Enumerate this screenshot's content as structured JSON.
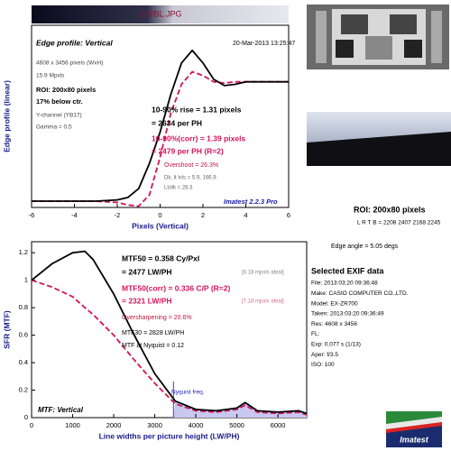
{
  "chart_data": [
    {
      "type": "line",
      "title": "GJFBL.JPG",
      "xlabel": "Pixels (Vertical)",
      "ylabel": "Edge profile (linear)",
      "x": [
        -6,
        -5,
        -4,
        -3,
        -2,
        -1.5,
        -1,
        -0.5,
        0,
        0.5,
        1,
        1.5,
        2,
        2.5,
        3,
        3.5,
        4,
        5,
        6
      ],
      "series": [
        {
          "name": "Edge",
          "color": "#000000",
          "dash": false,
          "values": [
            0.05,
            0.05,
            0.05,
            0.05,
            0.06,
            0.08,
            0.15,
            0.35,
            0.6,
            0.9,
            1.15,
            1.25,
            1.15,
            1.02,
            0.97,
            0.98,
            1.0,
            1.0,
            1.0
          ]
        },
        {
          "name": "Corrected",
          "color": "#d4145a",
          "dash": true,
          "values": [
            0.05,
            0.05,
            0.05,
            0.05,
            0.04,
            0.02,
            0.01,
            0.1,
            0.4,
            0.75,
            0.98,
            1.08,
            1.05,
            1.0,
            0.99,
            1.0,
            1.0,
            1.0,
            1.0
          ]
        }
      ],
      "xlim": [
        -6,
        6
      ],
      "xticks": [
        -6,
        -4,
        -2,
        0,
        2,
        4,
        6
      ],
      "ylim": [
        0,
        1.45
      ],
      "yticks": [],
      "annotations": [
        {
          "text": "Edge profile: Vertical",
          "color": "#000000"
        },
        {
          "text": "20-Mar-2013 13:25:47",
          "color": "#000000"
        },
        {
          "text": "4608 x 3456 pixels (WxH)",
          "color": "#444444"
        },
        {
          "text": "15.9 Mpxls",
          "color": "#444444"
        },
        {
          "text": "ROI: 200x80 pixels",
          "color": "#000000"
        },
        {
          "text": "17% below ctr.",
          "color": "#000000"
        },
        {
          "text": "Y-channel (YB17)",
          "color": "#444444"
        },
        {
          "text": "Gamma = 0.5",
          "color": "#444444"
        },
        {
          "text": "10-90% rise = 1.31 pixels",
          "color": "#000000"
        },
        {
          "text": "= 2634 per PH",
          "color": "#000000"
        },
        {
          "text": "10-90%(corr) = 1.39 pixels",
          "color": "#d4145a"
        },
        {
          "text": "= 2479 per PH  (R=2)",
          "color": "#d4145a"
        },
        {
          "text": "Overshoot = 26.3%",
          "color": "#c0143c"
        },
        {
          "text": "Dk, lt lvls = 5.9, 166.9",
          "color": "#666666"
        },
        {
          "text": "Lt/dk = 28.3",
          "color": "#666666"
        },
        {
          "text": "Imatest 2.2.3 Pro",
          "color": "#1a1aa0"
        }
      ]
    },
    {
      "type": "line",
      "xlabel": "Line widths per picture height (LW/PH)",
      "ylabel": "SFR (MTF)",
      "x": [
        0,
        500,
        1000,
        1300,
        1500,
        2000,
        2500,
        3000,
        3500,
        4000,
        4500,
        5000,
        5200,
        5500,
        6000,
        6500,
        6700
      ],
      "series": [
        {
          "name": "MTF",
          "color": "#000000",
          "dash": false,
          "values": [
            1.0,
            1.12,
            1.2,
            1.21,
            1.15,
            0.9,
            0.6,
            0.32,
            0.12,
            0.06,
            0.05,
            0.07,
            0.11,
            0.05,
            0.04,
            0.05,
            0.03
          ]
        },
        {
          "name": "MTF(corr)",
          "color": "#d4145a",
          "dash": true,
          "values": [
            1.0,
            0.95,
            0.88,
            0.8,
            0.75,
            0.6,
            0.42,
            0.25,
            0.1,
            0.05,
            0.04,
            0.06,
            0.09,
            0.04,
            0.03,
            0.04,
            0.02
          ]
        }
      ],
      "xlim": [
        0,
        6700
      ],
      "xticks": [
        0,
        1000,
        2000,
        3000,
        4000,
        5000,
        6000
      ],
      "ylim": [
        0,
        1.28
      ],
      "yticks": [
        0,
        0.2,
        0.4,
        0.6,
        0.8,
        1,
        1.2
      ],
      "nyquist": 3456,
      "annotations": [
        {
          "text": "MTF50 = 0.358 Cy/Pxl",
          "color": "#000000"
        },
        {
          "text": "= 2477 LW/PH",
          "color": "#000000"
        },
        {
          "text": "[8.18 mpxls ideal]",
          "color": "#888888"
        },
        {
          "text": "MTF50(corr) = 0.336 C/P  (R=2)",
          "color": "#d4145a"
        },
        {
          "text": "= 2321 LW/PH",
          "color": "#d4145a"
        },
        {
          "text": "[7.18 mpxls ideal]",
          "color": "#d47090"
        },
        {
          "text": "Oversharpening = 20.6%",
          "color": "#c0143c"
        },
        {
          "text": "MTF30 = 2828 LW/PH",
          "color": "#000000"
        },
        {
          "text": "MTF at Nyquist = 0.12",
          "color": "#000000"
        },
        {
          "text": "Nyquist freq.",
          "color": "#2020c0"
        },
        {
          "text": "MTF: Vertical",
          "color": "#000000"
        }
      ]
    }
  ],
  "right_panel": {
    "roi": "ROI: 200x80 pixels",
    "lrtb": "L R T B = 2208 2407  2168 2245",
    "edge_angle": "Edge angle = 5.05 degs",
    "exif_title": "Selected EXIF data",
    "exif_rows": [
      "File:  2013:03:20 09:36:48",
      "Make:  CASIO COMPUTER CO.,LTD.",
      "Model:  EX-ZR700",
      "Taken:  2013:03:20 09:36:49",
      "Res:  4608 x 3456",
      "FL:",
      "Exp:  0.077 s  (1/13)",
      "Aper:  f/3.5",
      "ISO:  100"
    ],
    "logo": "Imatest"
  }
}
